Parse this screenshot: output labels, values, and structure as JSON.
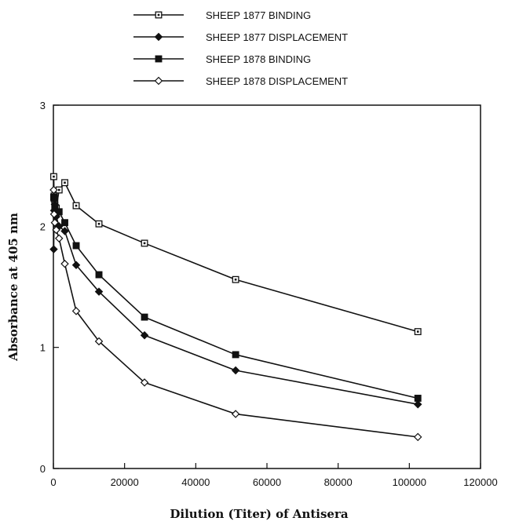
{
  "chart_data": {
    "type": "line",
    "title": "",
    "xlabel": "Dilution (Titer) of Antisera",
    "ylabel": "Absorbance at 405 nm",
    "xlim": [
      0,
      120000
    ],
    "ylim": [
      0,
      3
    ],
    "x_ticks": [
      "0",
      "20000",
      "40000",
      "60000",
      "80000",
      "100000",
      "120000"
    ],
    "y_ticks": [
      "0",
      "1",
      "2",
      "3"
    ],
    "grid": false,
    "legend_position": "top",
    "series": [
      {
        "name": "SHEEP 1877 BINDING",
        "marker": "open-square",
        "x": [
          100,
          200,
          400,
          800,
          1600,
          3200,
          6400,
          12800,
          25600,
          51200,
          102400
        ],
        "y": [
          2.41,
          2.25,
          2.22,
          2.15,
          2.3,
          2.36,
          2.17,
          2.02,
          1.86,
          1.56,
          1.13
        ]
      },
      {
        "name": "SHEEP 1877 DISPLACEMENT",
        "marker": "filled-diamond",
        "x": [
          100,
          200,
          400,
          800,
          1600,
          3200,
          6400,
          12800,
          25600,
          51200,
          102400
        ],
        "y": [
          1.81,
          2.13,
          2.18,
          2.08,
          2.0,
          1.96,
          1.68,
          1.46,
          1.1,
          0.81,
          0.53
        ]
      },
      {
        "name": "SHEEP 1878 BINDING",
        "marker": "filled-square",
        "x": [
          100,
          200,
          400,
          800,
          1600,
          3200,
          6400,
          12800,
          25600,
          51200,
          102400
        ],
        "y": [
          2.24,
          2.23,
          2.17,
          2.1,
          2.12,
          2.03,
          1.84,
          1.6,
          1.25,
          0.94,
          0.58
        ]
      },
      {
        "name": "SHEEP 1878 DISPLACEMENT",
        "marker": "open-diamond",
        "x": [
          100,
          200,
          400,
          800,
          1600,
          3200,
          6400,
          12800,
          25600,
          51200,
          102400
        ],
        "y": [
          2.3,
          2.1,
          2.03,
          1.97,
          1.9,
          1.69,
          1.3,
          1.05,
          0.71,
          0.45,
          0.26
        ]
      }
    ]
  }
}
